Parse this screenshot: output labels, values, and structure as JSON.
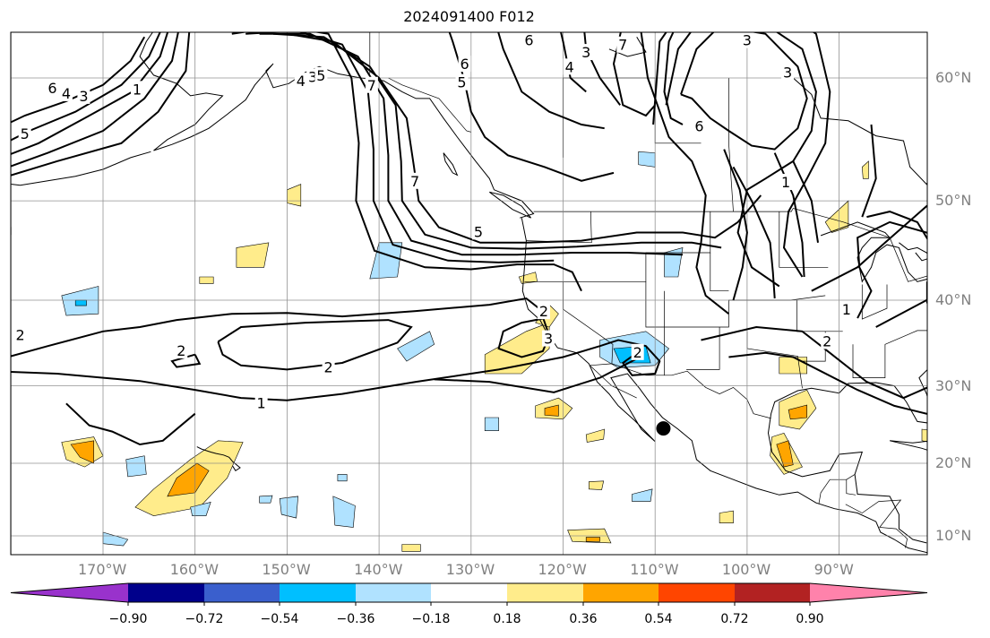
{
  "title": "2024091400 F012",
  "map": {
    "lat_labels": [
      "60°N",
      "50°N",
      "40°N",
      "30°N",
      "20°N",
      "10°N"
    ],
    "lon_labels": [
      "170°W",
      "160°W",
      "150°W",
      "140°W",
      "130°W",
      "120°W",
      "110°W",
      "100°W",
      "90°W"
    ],
    "contour_labels": [
      {
        "text": "6",
        "lon": -175.5,
        "lat": 59.3
      },
      {
        "text": "4",
        "lon": -174.0,
        "lat": 58.9
      },
      {
        "text": "3",
        "lon": -172.1,
        "lat": 58.7
      },
      {
        "text": "1",
        "lon": -166.3,
        "lat": 59.2
      },
      {
        "text": "5",
        "lon": -178.5,
        "lat": 55.8
      },
      {
        "text": "4",
        "lon": -148.5,
        "lat": 59.8
      },
      {
        "text": "3",
        "lon": -147.2,
        "lat": 60.1
      },
      {
        "text": "5",
        "lon": -146.3,
        "lat": 60.2
      },
      {
        "text": "7",
        "lon": -140.8,
        "lat": 59.5
      },
      {
        "text": "6",
        "lon": -130.7,
        "lat": 61.0
      },
      {
        "text": "5",
        "lon": -131.0,
        "lat": 59.7
      },
      {
        "text": "6",
        "lon": -123.7,
        "lat": 62.6
      },
      {
        "text": "4",
        "lon": -119.3,
        "lat": 60.8
      },
      {
        "text": "3",
        "lon": -117.5,
        "lat": 61.8
      },
      {
        "text": "7",
        "lon": -113.5,
        "lat": 62.3
      },
      {
        "text": "6",
        "lon": -105.2,
        "lat": 56.4
      },
      {
        "text": "3",
        "lon": -100.0,
        "lat": 62.6
      },
      {
        "text": "3",
        "lon": -95.6,
        "lat": 60.4
      },
      {
        "text": "1",
        "lon": -95.8,
        "lat": 51.7
      },
      {
        "text": "7",
        "lon": -136.1,
        "lat": 51.8
      },
      {
        "text": "5",
        "lon": -129.2,
        "lat": 47.1
      },
      {
        "text": "2",
        "lon": -179.0,
        "lat": 36.1
      },
      {
        "text": "2",
        "lon": -161.5,
        "lat": 34.3
      },
      {
        "text": "2",
        "lon": -145.5,
        "lat": 32.3
      },
      {
        "text": "1",
        "lon": -152.8,
        "lat": 27.9
      },
      {
        "text": "2",
        "lon": -122.1,
        "lat": 38.8
      },
      {
        "text": "3",
        "lon": -121.6,
        "lat": 35.7
      },
      {
        "text": "2",
        "lon": -111.9,
        "lat": 34.1
      },
      {
        "text": "1",
        "lon": -89.2,
        "lat": 39.0
      },
      {
        "text": "2",
        "lon": -91.3,
        "lat": 35.4
      }
    ],
    "marker": {
      "lon": -109.1,
      "lat": 24.6,
      "color": "#000000"
    }
  },
  "colorbar": {
    "ticks": [
      "−0.90",
      "−0.72",
      "−0.54",
      "−0.36",
      "−0.18",
      "0.18",
      "0.36",
      "0.54",
      "0.72",
      "0.90"
    ],
    "colors": [
      "#9932cc",
      "#00008b",
      "#3a5fcd",
      "#00bfff",
      "#b0e2ff",
      "#ffffff",
      "#ffec8b",
      "#ffa500",
      "#ff4500",
      "#b22222",
      "#ff82ab"
    ]
  }
}
